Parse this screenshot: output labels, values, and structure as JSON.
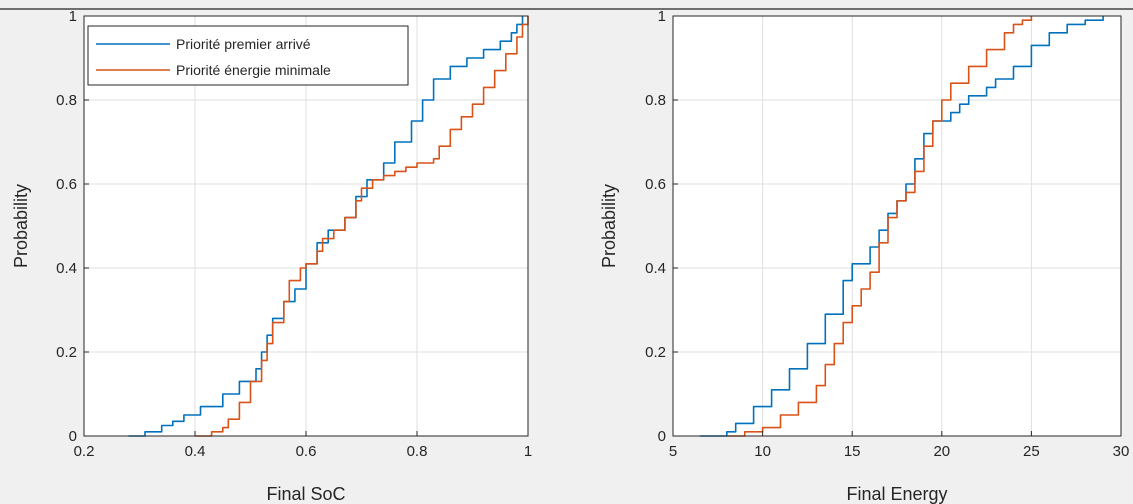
{
  "chart_data": [
    {
      "type": "line",
      "title": "",
      "xlabel": "Final SoC",
      "ylabel": "Probability",
      "xlim": [
        0.2,
        1
      ],
      "ylim": [
        0,
        1
      ],
      "xticks": [
        0.2,
        0.4,
        0.6,
        0.8,
        1
      ],
      "xtick_labels": [
        "0.2",
        "0.4",
        "0.6",
        "0.8",
        "1"
      ],
      "yticks": [
        0,
        0.2,
        0.4,
        0.6,
        0.8,
        1
      ],
      "ytick_labels": [
        "0",
        "0.2",
        "0.4",
        "0.6",
        "0.8",
        "1"
      ],
      "grid": true,
      "legend": "top-left",
      "series": [
        {
          "name": "Priorité premier arrivé",
          "color": "#0072bd",
          "x": [
            0.28,
            0.31,
            0.34,
            0.36,
            0.38,
            0.41,
            0.45,
            0.48,
            0.51,
            0.52,
            0.53,
            0.54,
            0.56,
            0.58,
            0.6,
            0.62,
            0.64,
            0.67,
            0.69,
            0.71,
            0.74,
            0.76,
            0.79,
            0.81,
            0.83,
            0.86,
            0.89,
            0.92,
            0.95,
            0.97,
            0.98,
            0.99
          ],
          "y": [
            0.0,
            0.01,
            0.025,
            0.035,
            0.05,
            0.07,
            0.1,
            0.13,
            0.16,
            0.2,
            0.24,
            0.28,
            0.32,
            0.35,
            0.41,
            0.46,
            0.49,
            0.52,
            0.57,
            0.61,
            0.65,
            0.7,
            0.75,
            0.8,
            0.85,
            0.88,
            0.9,
            0.92,
            0.94,
            0.96,
            0.98,
            1.0
          ]
        },
        {
          "name": "Priorité énergie minimale",
          "color": "#d95319",
          "x": [
            0.4,
            0.43,
            0.45,
            0.46,
            0.48,
            0.5,
            0.52,
            0.53,
            0.54,
            0.56,
            0.57,
            0.59,
            0.6,
            0.62,
            0.63,
            0.65,
            0.67,
            0.69,
            0.7,
            0.72,
            0.74,
            0.76,
            0.78,
            0.8,
            0.81,
            0.83,
            0.84,
            0.86,
            0.88,
            0.9,
            0.92,
            0.94,
            0.96,
            0.98,
            0.99,
            1.0
          ],
          "y": [
            0.0,
            0.01,
            0.02,
            0.04,
            0.08,
            0.13,
            0.18,
            0.22,
            0.27,
            0.32,
            0.37,
            0.4,
            0.41,
            0.44,
            0.47,
            0.49,
            0.52,
            0.56,
            0.59,
            0.61,
            0.62,
            0.63,
            0.64,
            0.65,
            0.65,
            0.66,
            0.69,
            0.73,
            0.76,
            0.79,
            0.83,
            0.87,
            0.91,
            0.95,
            0.98,
            1.0
          ]
        }
      ]
    },
    {
      "type": "line",
      "title": "",
      "xlabel": "Final Energy",
      "ylabel": "Probability",
      "xlim": [
        5,
        30
      ],
      "ylim": [
        0,
        1
      ],
      "xticks": [
        5,
        10,
        15,
        20,
        25,
        30
      ],
      "xtick_labels": [
        "5",
        "10",
        "15",
        "20",
        "25",
        "30"
      ],
      "yticks": [
        0,
        0.2,
        0.4,
        0.6,
        0.8,
        1
      ],
      "ytick_labels": [
        "0",
        "0.2",
        "0.4",
        "0.6",
        "0.8",
        "1"
      ],
      "grid": true,
      "legend": "",
      "series": [
        {
          "name": "Priorité premier arrivé",
          "color": "#0072bd",
          "x": [
            6.5,
            8.0,
            8.5,
            9.5,
            10.5,
            11.5,
            12.5,
            13.5,
            14.5,
            15.0,
            16.0,
            16.5,
            17.0,
            17.5,
            18.0,
            18.5,
            19.0,
            19.5,
            20.0,
            20.5,
            21.0,
            21.5,
            22.5,
            23.0,
            24.0,
            25.0,
            26.0,
            27.0,
            28.0,
            29.0
          ],
          "y": [
            0.0,
            0.01,
            0.03,
            0.07,
            0.11,
            0.16,
            0.22,
            0.29,
            0.37,
            0.41,
            0.45,
            0.49,
            0.53,
            0.56,
            0.6,
            0.66,
            0.72,
            0.75,
            0.75,
            0.77,
            0.79,
            0.81,
            0.83,
            0.85,
            0.88,
            0.93,
            0.96,
            0.98,
            0.99,
            1.0
          ]
        },
        {
          "name": "Priorité énergie minimale",
          "color": "#d95319",
          "x": [
            8.0,
            9.0,
            10.0,
            11.0,
            12.0,
            13.0,
            13.5,
            14.0,
            14.5,
            15.0,
            15.5,
            16.0,
            16.5,
            17.0,
            17.5,
            18.0,
            18.5,
            19.0,
            19.5,
            20.0,
            20.5,
            21.5,
            22.5,
            23.5,
            24.0,
            24.5,
            25.0
          ],
          "y": [
            0.0,
            0.01,
            0.02,
            0.05,
            0.08,
            0.12,
            0.17,
            0.22,
            0.27,
            0.31,
            0.35,
            0.39,
            0.46,
            0.52,
            0.56,
            0.58,
            0.63,
            0.69,
            0.75,
            0.8,
            0.84,
            0.88,
            0.92,
            0.96,
            0.98,
            0.99,
            1.0
          ]
        }
      ]
    }
  ]
}
